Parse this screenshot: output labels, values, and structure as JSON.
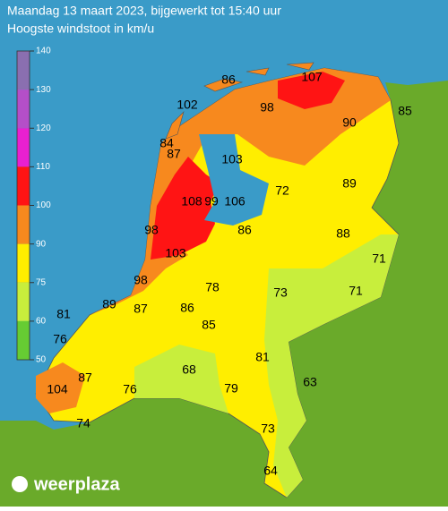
{
  "header": {
    "title": "Maandag 13 maart 2023, bijgewerkt tot 15:40 uur",
    "subtitle": "Hoogste windstoot in km/u"
  },
  "legend": {
    "ticks": [
      140,
      130,
      120,
      110,
      100,
      90,
      75,
      60,
      50
    ],
    "colors": [
      "#8a6fb0",
      "#b44fc8",
      "#e820d0",
      "#ff1414",
      "#f7891e",
      "#ffee00",
      "#c8ee3c",
      "#66cc33"
    ]
  },
  "stations": [
    86,
    107,
    102,
    98,
    90,
    85,
    84,
    87,
    103,
    89,
    72,
    108,
    99,
    106,
    98,
    86,
    88,
    103,
    71,
    98,
    78,
    73,
    71,
    81,
    89,
    87,
    86,
    85,
    76,
    81,
    68,
    87,
    104,
    76,
    79,
    63,
    74,
    73,
    64
  ],
  "logo": "weerplaza"
}
